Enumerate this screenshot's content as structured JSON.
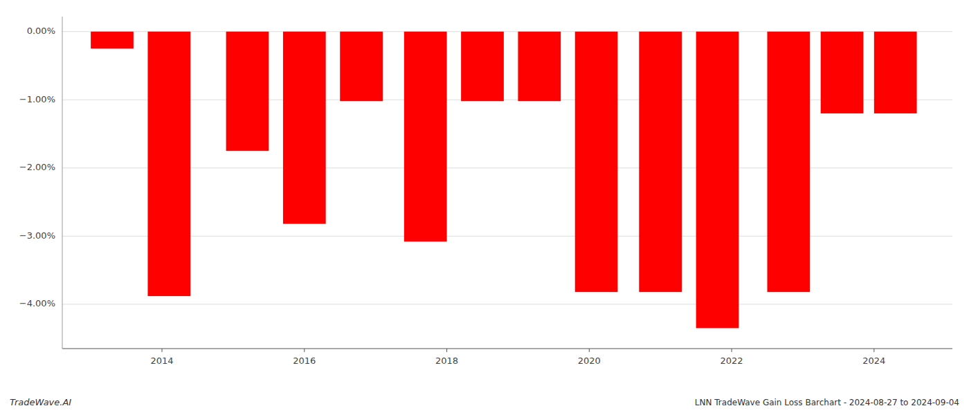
{
  "chart_data": {
    "type": "bar",
    "title": "LNN TradeWave Gain Loss Barchart - 2024-08-27 to 2024-09-04",
    "annotations": [
      "TradeWave.AI"
    ],
    "x": [
      2013.3,
      2014.1,
      2015.2,
      2016.0,
      2016.8,
      2017.7,
      2018.5,
      2019.3,
      2020.1,
      2021.0,
      2021.8,
      2022.8,
      2023.55,
      2024.3
    ],
    "values": [
      -0.25,
      -3.88,
      -1.75,
      -2.82,
      -1.02,
      -3.08,
      -1.02,
      -1.02,
      -3.82,
      -3.82,
      -4.35,
      -3.82,
      -1.2,
      -1.2
    ],
    "color": "#ff0000",
    "xlim": [
      2012.6,
      2025.1
    ],
    "xticks": [
      2014,
      2016,
      2018,
      2020,
      2022,
      2024
    ],
    "ylim": [
      -4.65,
      0.22
    ],
    "yticks": [
      {
        "value": 0.0,
        "label": "0.00%"
      },
      {
        "value": -1.0,
        "label": "−1.00%"
      },
      {
        "value": -2.0,
        "label": "−2.00%"
      },
      {
        "value": -3.0,
        "label": "−3.00%"
      },
      {
        "value": -4.0,
        "label": "−4.00%"
      }
    ],
    "grid": true
  }
}
